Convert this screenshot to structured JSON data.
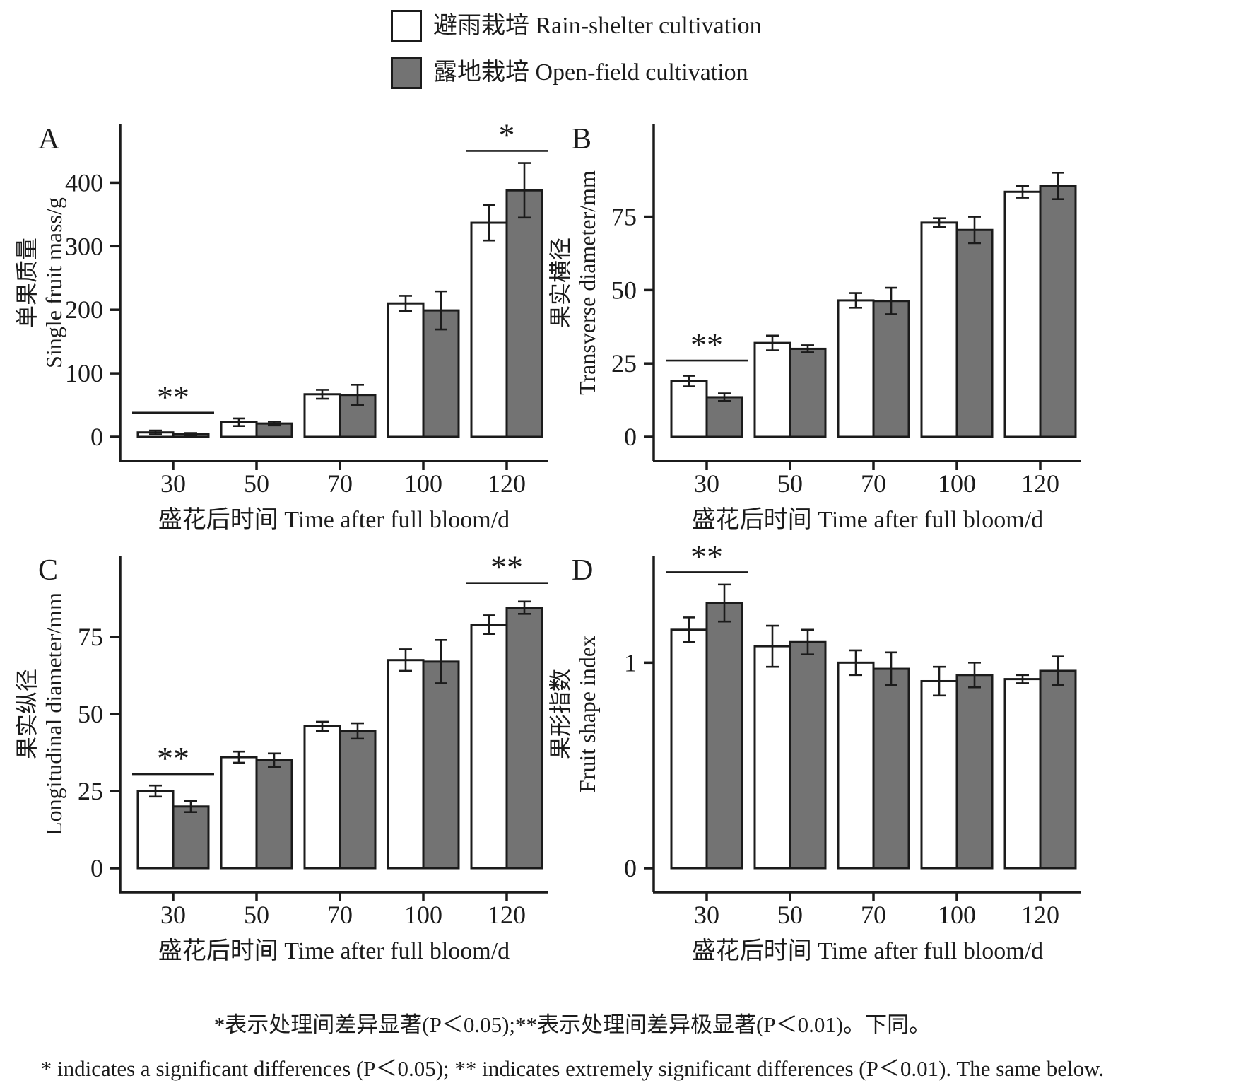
{
  "legend": {
    "items": [
      {
        "label": "避雨栽培 Rain-shelter cultivation",
        "fill": "#ffffff"
      },
      {
        "label": "露地栽培 Open-field cultivation",
        "fill": "#737373"
      }
    ]
  },
  "colors": {
    "rain_shelter_fill": "#ffffff",
    "open_field_fill": "#737373",
    "stroke": "#1b1b1b"
  },
  "xlabel": "盛花后时间 Time after full bloom/d",
  "categories": [
    "30",
    "50",
    "70",
    "100",
    "120"
  ],
  "footnotes": {
    "zh": "*表示处理间差异显著(P＜0.05);**表示处理间差异极显著(P＜0.01)。下同。",
    "en": "* indicates a significant differences (P＜0.05); ** indicates extremely significant differences (P＜0.01). The same below."
  },
  "chart_data": [
    {
      "panel": "A",
      "type": "bar",
      "ylabel_zh": "单果质量",
      "ylabel_en": "Single fruit mass/g",
      "xlabel": "盛花后时间 Time after full bloom/d",
      "categories": [
        "30",
        "50",
        "70",
        "100",
        "120"
      ],
      "yticks": [
        0,
        100,
        200,
        300,
        400
      ],
      "ylim": [
        0,
        485
      ],
      "grid": false,
      "series": [
        {
          "name": "Rain-shelter cultivation",
          "values": [
            7,
            23,
            67,
            210,
            337
          ],
          "errors": [
            3,
            6,
            7,
            12,
            28
          ]
        },
        {
          "name": "Open-field cultivation",
          "values": [
            4,
            21,
            66,
            199,
            388
          ],
          "errors": [
            2,
            3,
            16,
            30,
            43
          ]
        }
      ],
      "significance": [
        {
          "group_index": 0,
          "label": "**",
          "line_y": 38
        },
        {
          "group_index": 4,
          "label": "*",
          "line_y": 450
        }
      ]
    },
    {
      "panel": "B",
      "type": "bar",
      "ylabel_zh": "果实横径",
      "ylabel_en": "Transverse diameter/mm",
      "xlabel": "盛花后时间 Time after full bloom/d",
      "categories": [
        "30",
        "50",
        "70",
        "100",
        "120"
      ],
      "yticks": [
        0,
        25,
        50,
        75
      ],
      "ylim": [
        0,
        105
      ],
      "grid": false,
      "series": [
        {
          "name": "Rain-shelter cultivation",
          "values": [
            19,
            32,
            46.5,
            73,
            83.5
          ],
          "errors": [
            1.8,
            2.5,
            2.5,
            1.5,
            2
          ]
        },
        {
          "name": "Open-field cultivation",
          "values": [
            13.5,
            30,
            46.3,
            70.5,
            85.5
          ],
          "errors": [
            1.3,
            1.2,
            4.5,
            4.5,
            4.5
          ]
        }
      ],
      "significance": [
        {
          "group_index": 0,
          "label": "**",
          "line_y": 26
        }
      ]
    },
    {
      "panel": "C",
      "type": "bar",
      "ylabel_zh": "果实纵径",
      "ylabel_en": "Longitudinal diameter/mm",
      "xlabel": "盛花后时间 Time after full bloom/d",
      "categories": [
        "30",
        "50",
        "70",
        "100",
        "120"
      ],
      "yticks": [
        0,
        25,
        50,
        75
      ],
      "ylim": [
        0,
        100
      ],
      "grid": false,
      "series": [
        {
          "name": "Rain-shelter cultivation",
          "values": [
            25,
            36,
            46,
            67.5,
            79
          ],
          "errors": [
            1.8,
            1.8,
            1.5,
            3.5,
            3
          ]
        },
        {
          "name": "Open-field cultivation",
          "values": [
            20,
            35,
            44.5,
            67,
            84.5
          ],
          "errors": [
            1.8,
            2.2,
            2.5,
            7,
            2
          ]
        }
      ],
      "significance": [
        {
          "group_index": 0,
          "label": "**",
          "line_y": 30.5
        },
        {
          "group_index": 4,
          "label": "**",
          "line_y": 92.5
        }
      ]
    },
    {
      "panel": "D",
      "type": "bar",
      "ylabel_zh": "果形指数",
      "ylabel_en": "Fruit shape index",
      "xlabel": "盛花后时间 Time after full bloom/d",
      "categories": [
        "30",
        "50",
        "70",
        "100",
        "120"
      ],
      "yticks": [
        0,
        1
      ],
      "ylim": [
        0,
        1.5
      ],
      "grid": false,
      "series": [
        {
          "name": "Rain-shelter cultivation",
          "values": [
            1.16,
            1.08,
            1.0,
            0.91,
            0.92
          ],
          "errors": [
            0.06,
            0.1,
            0.06,
            0.07,
            0.02
          ]
        },
        {
          "name": "Open-field cultivation",
          "values": [
            1.29,
            1.1,
            0.97,
            0.94,
            0.96
          ],
          "errors": [
            0.09,
            0.06,
            0.08,
            0.06,
            0.07
          ]
        }
      ],
      "significance": [
        {
          "group_index": 0,
          "label": "**",
          "line_y": 1.44
        }
      ]
    }
  ]
}
